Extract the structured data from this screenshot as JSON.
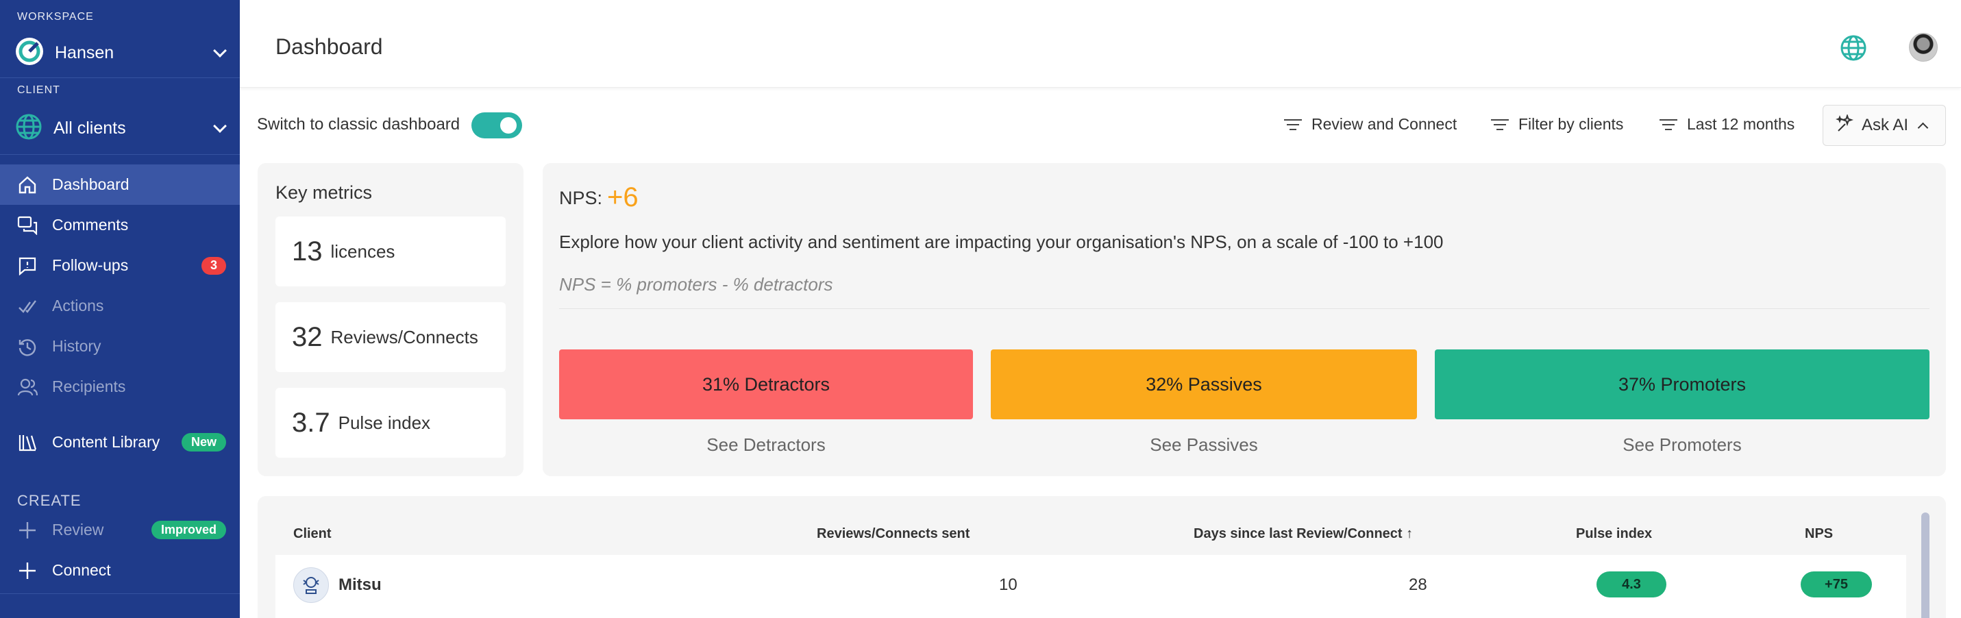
{
  "sidebar": {
    "workspace_section": "WORKSPACE",
    "workspace_name": "Hansen",
    "client_section": "CLIENT",
    "client_name": "All clients",
    "nav": [
      {
        "label": "Dashboard",
        "icon": "home-icon"
      },
      {
        "label": "Comments",
        "icon": "comments-icon"
      },
      {
        "label": "Follow-ups",
        "icon": "follow-up-icon",
        "badge": "3"
      },
      {
        "label": "Actions",
        "icon": "check-icon"
      },
      {
        "label": "History",
        "icon": "history-icon"
      },
      {
        "label": "Recipients",
        "icon": "users-icon"
      },
      {
        "label": "Content Library",
        "icon": "library-icon",
        "badge": "New"
      }
    ],
    "create_section": "CREATE",
    "create": [
      {
        "label": "Review",
        "icon": "plus-icon",
        "badge": "Improved"
      },
      {
        "label": "Connect",
        "icon": "plus-icon"
      }
    ]
  },
  "header": {
    "title": "Dashboard"
  },
  "toolbar": {
    "toggle_label": "Switch to classic dashboard",
    "filters": [
      "Review and Connect",
      "Filter by clients",
      "Last 12 months"
    ],
    "ask_ai": "Ask AI"
  },
  "key_metrics": {
    "title": "Key metrics",
    "items": [
      {
        "value": "13",
        "label": "licences"
      },
      {
        "value": "32",
        "label": "Reviews/Connects"
      },
      {
        "value": "3.7",
        "label": "Pulse index"
      }
    ]
  },
  "nps": {
    "label": "NPS:",
    "value": "+6",
    "description": "Explore how your client activity and sentiment are impacting your organisation's NPS, on a scale of -100 to +100",
    "formula": "NPS = % promoters - % detractors",
    "segments": [
      {
        "label": "31% Detractors",
        "link": "See Detractors",
        "color": "#fc6567"
      },
      {
        "label": "32% Passives",
        "link": "See Passives",
        "color": "#fba91b"
      },
      {
        "label": "37% Promoters",
        "link": "See Promoters",
        "color": "#22b48c"
      }
    ]
  },
  "table": {
    "headers": [
      "Client",
      "Reviews/Connects sent",
      "Days since last Review/Connect ↑",
      "Pulse index",
      "NPS"
    ],
    "rows": [
      {
        "client": "Mitsu",
        "sent": "10",
        "days": "28",
        "pulse": "4.3",
        "nps": "+75"
      }
    ]
  }
}
